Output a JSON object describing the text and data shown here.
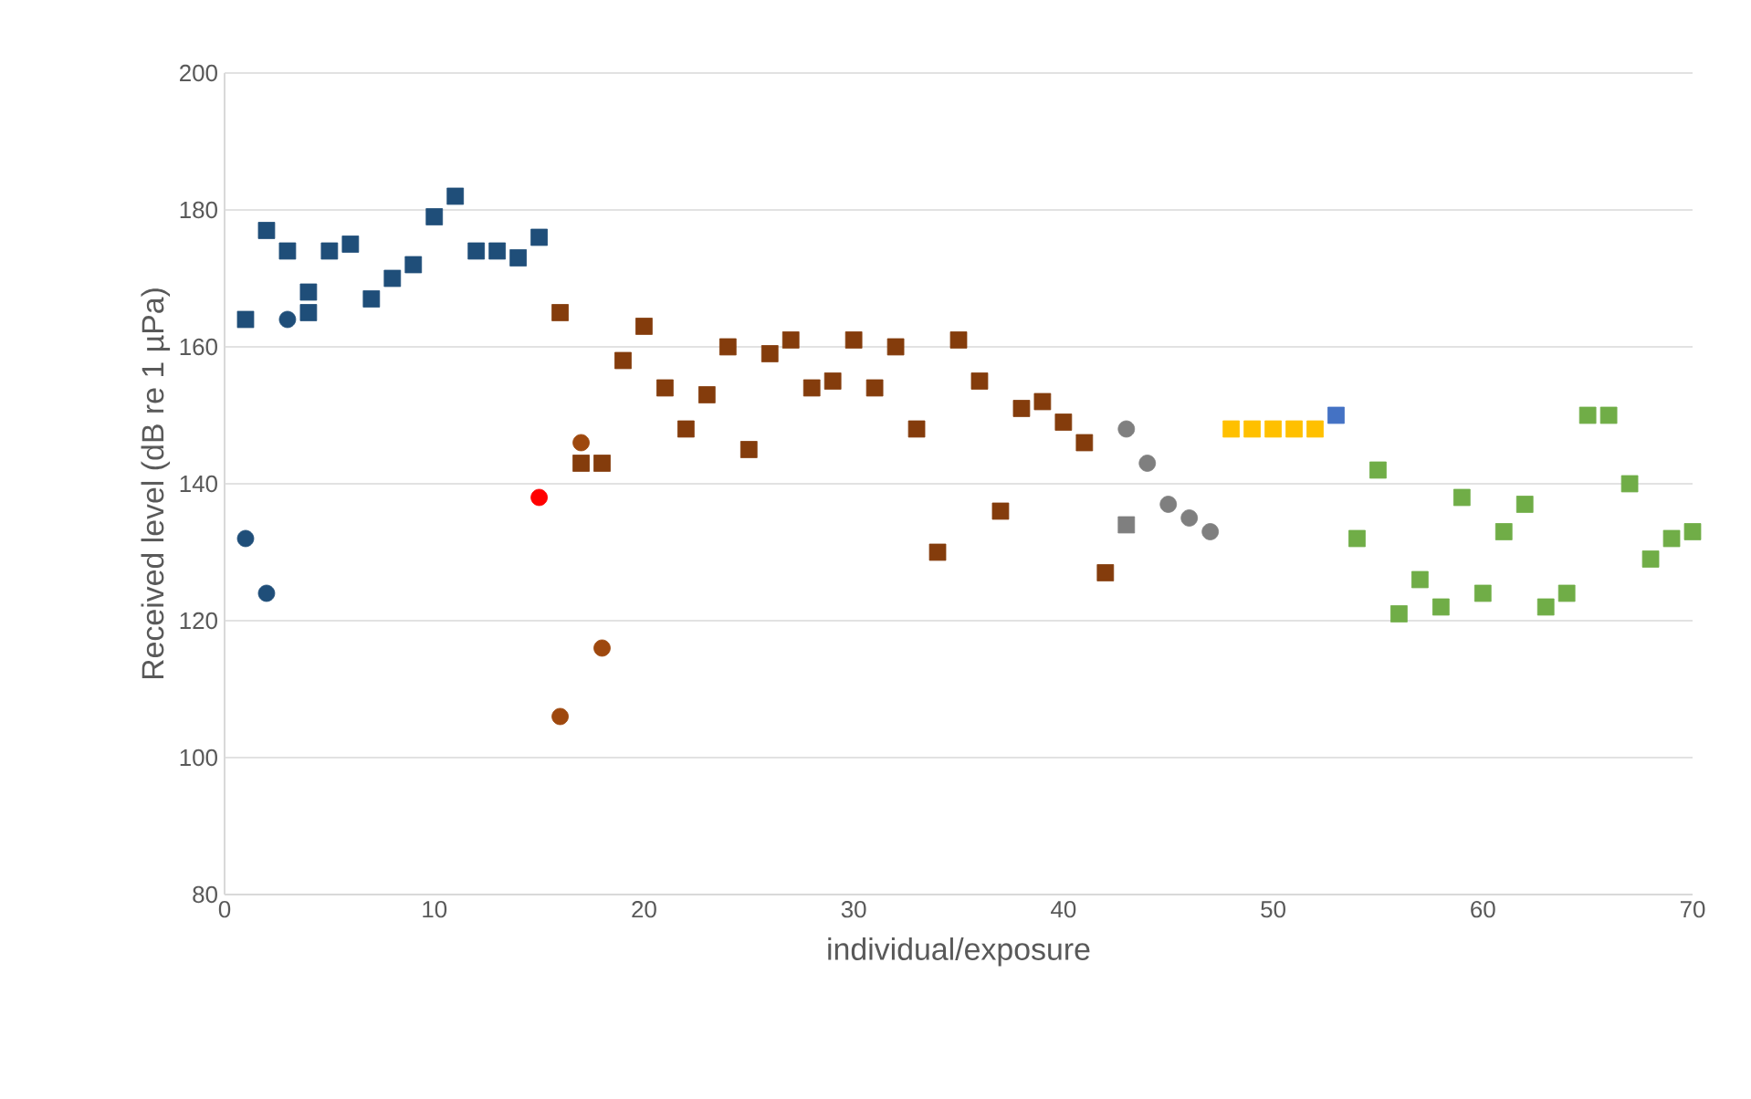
{
  "chart_data": {
    "type": "scatter",
    "xlabel": "individual/exposure",
    "ylabel": "Received level (dB re 1 µPa)",
    "xlim": [
      0,
      70
    ],
    "xticks": [
      0,
      10,
      20,
      30,
      40,
      50,
      60,
      70
    ],
    "ylim": [
      80,
      200
    ],
    "yticks": [
      80,
      100,
      120,
      140,
      160,
      180,
      200
    ],
    "grid": "y",
    "series": [
      {
        "color": "#1f4e79",
        "marker": "square",
        "x": [
          1,
          2,
          3,
          4,
          4,
          5,
          6,
          7,
          8,
          9,
          10,
          11,
          12,
          13,
          14,
          15
        ],
        "values": [
          164,
          177,
          174,
          165,
          168,
          174,
          175,
          167,
          170,
          172,
          179,
          182,
          174,
          174,
          173,
          176
        ]
      },
      {
        "color": "#1f4e79",
        "marker": "circle",
        "x": [
          1,
          2,
          3
        ],
        "values": [
          132,
          124,
          164
        ]
      },
      {
        "color": "#ff0000",
        "marker": "circle",
        "x": [
          15
        ],
        "values": [
          138
        ]
      },
      {
        "color": "#843c0c",
        "marker": "square",
        "x": [
          16,
          17,
          18,
          19,
          20,
          21,
          22,
          23,
          24,
          25,
          26,
          27,
          28,
          29,
          30,
          31,
          32,
          33,
          34,
          35,
          36,
          37,
          38,
          39,
          40,
          41,
          42
        ],
        "values": [
          165,
          143,
          143,
          158,
          163,
          154,
          148,
          153,
          160,
          145,
          159,
          161,
          154,
          155,
          161,
          154,
          160,
          148,
          130,
          161,
          155,
          136,
          151,
          152,
          149,
          146,
          127
        ]
      },
      {
        "color": "#9e480e",
        "marker": "circle",
        "x": [
          16,
          17,
          18
        ],
        "values": [
          106,
          146,
          116
        ]
      },
      {
        "color": "#7f7f7f",
        "marker": "circle",
        "x": [
          43,
          44,
          45,
          46,
          47
        ],
        "values": [
          148,
          143,
          137,
          135,
          133
        ]
      },
      {
        "color": "#7f7f7f",
        "marker": "square",
        "x": [
          43
        ],
        "values": [
          134
        ]
      },
      {
        "color": "#ffc000",
        "marker": "square",
        "x": [
          48,
          49,
          50,
          51,
          52
        ],
        "values": [
          148,
          148,
          148,
          148,
          148
        ]
      },
      {
        "color": "#4472c4",
        "marker": "square",
        "x": [
          53
        ],
        "values": [
          150
        ]
      },
      {
        "color": "#70ad47",
        "marker": "square",
        "x": [
          54,
          55,
          56,
          57,
          58,
          59,
          60,
          61,
          62,
          63,
          64,
          65,
          66,
          67,
          68,
          69,
          70
        ],
        "values": [
          132,
          142,
          121,
          126,
          122,
          138,
          124,
          133,
          137,
          122,
          124,
          150,
          150,
          140,
          129,
          132,
          133
        ]
      }
    ]
  }
}
